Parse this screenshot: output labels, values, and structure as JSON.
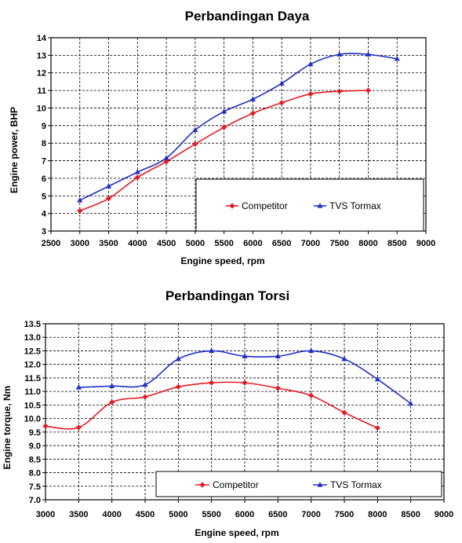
{
  "chart_data": [
    {
      "type": "line",
      "title": "Perbandingan Daya",
      "xlabel": "Engine speed, rpm",
      "ylabel": "Engine power, BHP",
      "xlim": [
        2500,
        9000
      ],
      "ylim": [
        3,
        14
      ],
      "xticks": [
        "2500",
        "3000",
        "3500",
        "4000",
        "4500",
        "5000",
        "5500",
        "6000",
        "6500",
        "7000",
        "7500",
        "8000",
        "8500",
        "9000"
      ],
      "yticks": [
        "3",
        "4",
        "5",
        "6",
        "7",
        "8",
        "9",
        "10",
        "11",
        "12",
        "13",
        "14"
      ],
      "grid": true,
      "legend_position": "bottom-right",
      "series": [
        {
          "name": "Competitor",
          "color": "#e31c23",
          "marker": "diamond",
          "x": [
            3000,
            3500,
            4000,
            4500,
            5000,
            5500,
            6000,
            6500,
            7000,
            7500,
            8000
          ],
          "values": [
            4.15,
            4.85,
            6.05,
            6.95,
            7.95,
            8.9,
            9.7,
            10.3,
            10.8,
            10.95,
            11.0
          ]
        },
        {
          "name": "TVS Tormax",
          "color": "#1f2fc4",
          "marker": "triangle",
          "x": [
            3000,
            3500,
            4000,
            4500,
            5000,
            5500,
            6000,
            6500,
            7000,
            7500,
            8000,
            8500
          ],
          "values": [
            4.75,
            5.55,
            6.35,
            7.15,
            8.75,
            9.8,
            10.5,
            11.4,
            12.5,
            13.05,
            13.05,
            12.8
          ]
        }
      ]
    },
    {
      "type": "line",
      "title": "Perbandingan Torsi",
      "xlabel": "Engine speed, rpm",
      "ylabel": "Engine torque, Nm",
      "xlim": [
        3000,
        9000
      ],
      "ylim": [
        7.0,
        13.5
      ],
      "xticks": [
        "3000",
        "3500",
        "4000",
        "4500",
        "5000",
        "5500",
        "6000",
        "6500",
        "7000",
        "7500",
        "8000",
        "8500",
        "9000"
      ],
      "yticks": [
        "7.0",
        "7.5",
        "8.0",
        "8.5",
        "9.0",
        "9.5",
        "10.0",
        "10.5",
        "11.0",
        "11.5",
        "12.0",
        "12.5",
        "13.0",
        "13.5"
      ],
      "grid": true,
      "legend_position": "bottom-right",
      "series": [
        {
          "name": "Competitor",
          "color": "#e31c23",
          "marker": "diamond",
          "x": [
            3000,
            3500,
            4000,
            4500,
            5000,
            5500,
            6000,
            6500,
            7000,
            7500,
            8000
          ],
          "values": [
            9.72,
            9.67,
            10.6,
            10.8,
            11.17,
            11.32,
            11.32,
            11.12,
            10.85,
            10.22,
            9.65
          ]
        },
        {
          "name": "TVS Tormax",
          "color": "#1f2fc4",
          "marker": "triangle",
          "x": [
            3500,
            4000,
            4500,
            5000,
            5500,
            6000,
            6500,
            7000,
            7500,
            8000,
            8500
          ],
          "values": [
            11.15,
            11.2,
            11.25,
            12.2,
            12.5,
            12.3,
            12.3,
            12.5,
            12.2,
            11.45,
            10.55
          ]
        }
      ]
    }
  ]
}
